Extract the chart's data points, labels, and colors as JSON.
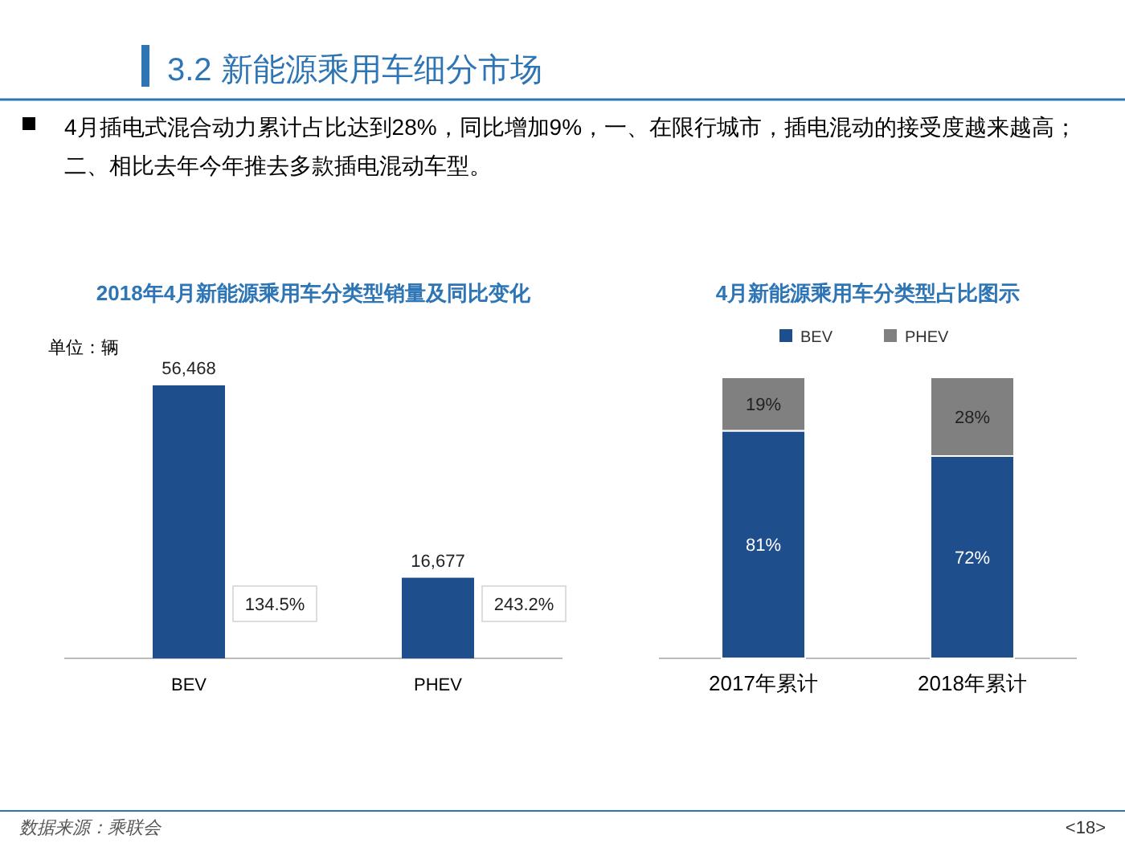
{
  "chart_data": [
    {
      "type": "other",
      "title": "3.2 新能源乘用车细分市场",
      "annotations": [
        "4月插电式混合动力累计占比达到28%，同比增加9%，一、在限行城市，插电混动的接受度越来越高；二、相比去年今年推去多款插电混动车型。",
        "数据来源：乘联会",
        "<18>"
      ]
    },
    {
      "type": "bar",
      "title": "2018年4月新能源乘用车分类型销量及同比变化",
      "ylabel": "单位：辆",
      "categories": [
        "BEV",
        "PHEV"
      ],
      "values": [
        56468,
        16677
      ],
      "value_labels": [
        "56,468",
        "16,677"
      ],
      "color": "#1f4e8c",
      "annotations": [
        "134.5%",
        "243.2%"
      ]
    },
    {
      "type": "bar",
      "title": "4月新能源乘用车分类型占比图示",
      "categories": [
        "2017年累计",
        "2018年累计"
      ],
      "stacked": true,
      "legend": "top",
      "ylim": [
        0,
        100
      ],
      "tick_labels": "x",
      "series": [
        {
          "name": "BEV",
          "color": "#1f4e8c",
          "values": [
            81,
            72
          ],
          "value_labels": [
            "81%",
            "72%"
          ]
        },
        {
          "name": "PHEV",
          "color": "#808080",
          "values": [
            19,
            28
          ],
          "value_labels": [
            "19%",
            "28%"
          ]
        }
      ]
    }
  ]
}
